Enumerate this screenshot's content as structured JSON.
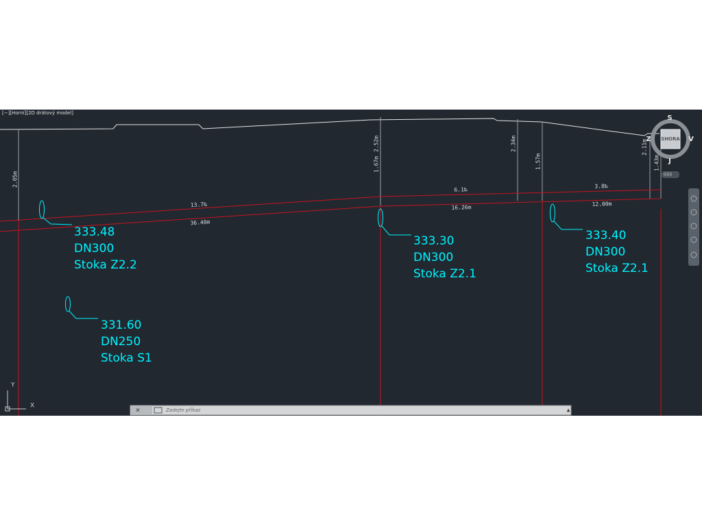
{
  "viewport": {
    "label": "[−][Horní][2D drátový model]"
  },
  "heights": [
    "2.05m",
    "2.52m",
    "1.67m",
    "2.34m",
    "1.57m",
    "2.11m",
    "1.43m"
  ],
  "segments": [
    {
      "slope": "13.7‰",
      "length": "36.40m"
    },
    {
      "slope": "6.1‰",
      "length": "16.26m"
    },
    {
      "slope": "3.8‰",
      "length": "12.00m"
    }
  ],
  "annotations": [
    {
      "level": "333.48",
      "pipe": "DN300",
      "name": "Stoka Z2.2"
    },
    {
      "level": "333.30",
      "pipe": "DN300",
      "name": "Stoka Z2.1"
    },
    {
      "level": "333.40",
      "pipe": "DN300",
      "name": "Stoka Z2.1"
    },
    {
      "level": "331.60",
      "pipe": "DN250",
      "name": "Stoka S1"
    }
  ],
  "viewcube": {
    "north": "S",
    "east": "V",
    "south": "J",
    "west": "Z",
    "face": "SHORA",
    "wcs": "GSS"
  },
  "ucs": {
    "y": "Y",
    "x": "X"
  },
  "command_line": {
    "placeholder": "Zadejte příkaz"
  }
}
